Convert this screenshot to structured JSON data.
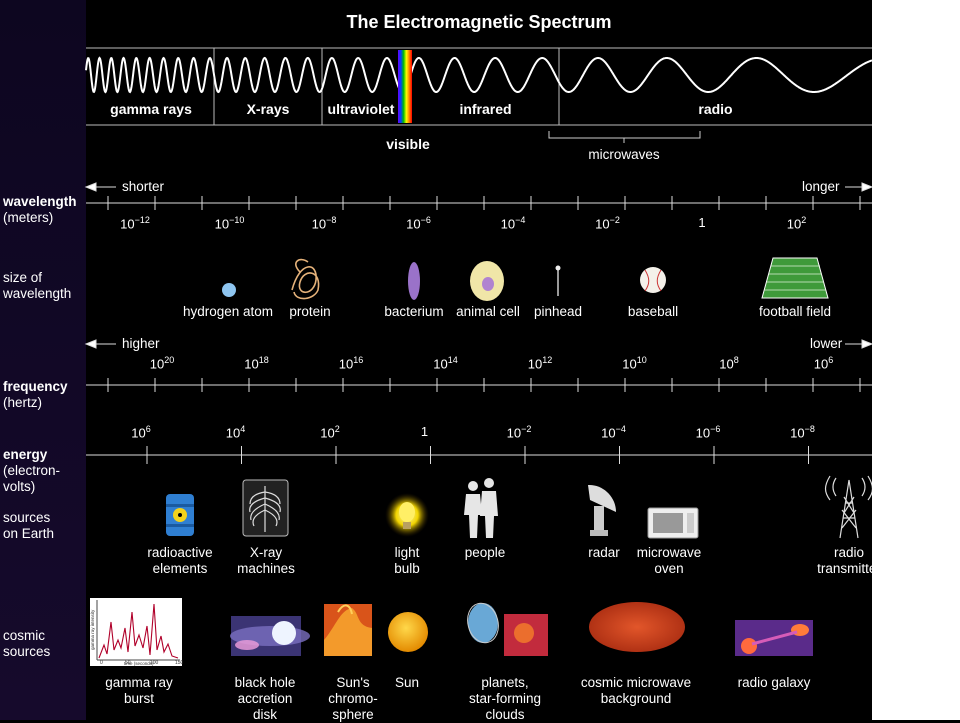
{
  "title": "The Electromagnetic Spectrum",
  "bands": [
    "gamma rays",
    "X-rays",
    "ultraviolet",
    "infrared",
    "radio"
  ],
  "visible_label": "visible",
  "microwaves_label": "microwaves",
  "wavelength": {
    "heading": "wavelength",
    "unit": "(meters)",
    "left_arrow": "shorter",
    "right_arrow": "longer",
    "ticks": [
      {
        "base": "10",
        "exp": "−12"
      },
      {
        "base": "10",
        "exp": "−10"
      },
      {
        "base": "10",
        "exp": "−8"
      },
      {
        "base": "10",
        "exp": "−6"
      },
      {
        "base": "10",
        "exp": "−4"
      },
      {
        "base": "10",
        "exp": "−2"
      },
      {
        "base": "1",
        "exp": ""
      },
      {
        "base": "10",
        "exp": "2"
      }
    ]
  },
  "size": {
    "heading_line1": "size of",
    "heading_line2": "wavelength",
    "items": [
      "hydrogen atom",
      "protein",
      "bacterium",
      "animal cell",
      "pinhead",
      "baseball",
      "football field"
    ]
  },
  "frequency": {
    "heading": "frequency",
    "unit": "(hertz)",
    "left_arrow": "higher",
    "right_arrow": "lower",
    "ticks": [
      {
        "base": "10",
        "exp": "20"
      },
      {
        "base": "10",
        "exp": "18"
      },
      {
        "base": "10",
        "exp": "16"
      },
      {
        "base": "10",
        "exp": "14"
      },
      {
        "base": "10",
        "exp": "12"
      },
      {
        "base": "10",
        "exp": "10"
      },
      {
        "base": "10",
        "exp": "8"
      },
      {
        "base": "10",
        "exp": "6"
      }
    ]
  },
  "energy": {
    "heading": "energy",
    "unit_line1": "(electron-",
    "unit_line2": "volts)",
    "ticks": [
      {
        "base": "10",
        "exp": "6"
      },
      {
        "base": "10",
        "exp": "4"
      },
      {
        "base": "10",
        "exp": "2"
      },
      {
        "base": "1",
        "exp": ""
      },
      {
        "base": "10",
        "exp": "−2"
      },
      {
        "base": "10",
        "exp": "−4"
      },
      {
        "base": "10",
        "exp": "−6"
      },
      {
        "base": "10",
        "exp": "−8"
      }
    ]
  },
  "earth": {
    "heading_line1": "sources",
    "heading_line2": "on Earth",
    "items": [
      "radioactive\nelements",
      "X-ray\nmachines",
      "light\nbulb",
      "people",
      "radar",
      "microwave\noven",
      "radio\ntransmitter"
    ]
  },
  "cosmic": {
    "heading_line1": "cosmic",
    "heading_line2": "sources",
    "items": [
      "gamma ray\nburst",
      "black hole\naccretion\ndisk",
      "Sun's\nchromo-\nsphere",
      "Sun",
      "planets,\nstar-forming\nclouds",
      "cosmic microwave\nbackground",
      "radio galaxy"
    ],
    "plot_ylabel": "gamma ray intensity",
    "plot_xlabel": "time (seconds)",
    "plot_ticks": [
      "0",
      "50",
      "100",
      "150"
    ]
  }
}
